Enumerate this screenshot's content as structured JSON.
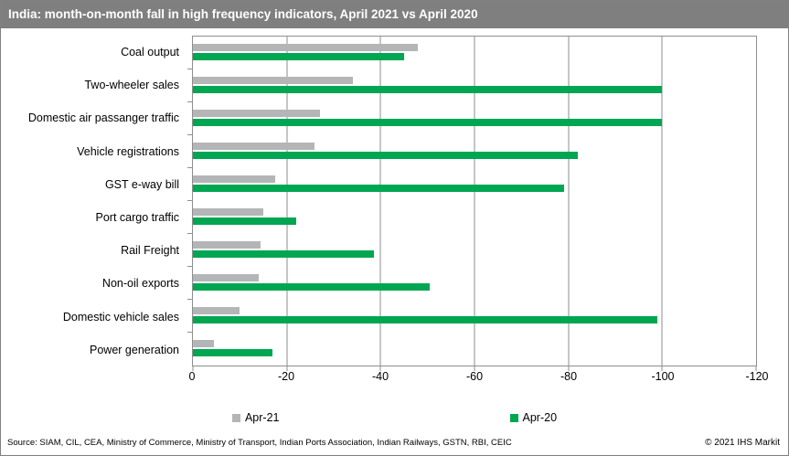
{
  "title": "India: month-on-month fall in high frequency indicators, April 2021 vs April 2020",
  "chart_data": {
    "type": "bar",
    "orientation": "horizontal",
    "title": "India: month-on-month fall in high frequency indicators, April 2021 vs April 2020",
    "categories": [
      "Coal output",
      "Two-wheeler sales",
      "Domestic air passanger traffic",
      "Vehicle registrations",
      "GST e-way bill",
      "Port cargo traffic",
      "Rail Freight",
      "Non-oil exports",
      "Domestic vehicle sales",
      "Power generation"
    ],
    "series": [
      {
        "name": "Apr-21",
        "color": "#b3b5b7",
        "values": [
          -48,
          -34,
          -27,
          -26,
          -17.5,
          -15,
          -14.5,
          -14,
          -10,
          -4.5
        ]
      },
      {
        "name": "Apr-20",
        "color": "#00a651",
        "values": [
          -45,
          -100,
          -100,
          -82,
          -79,
          -22,
          -38.5,
          -50.5,
          -99,
          -17
        ]
      }
    ],
    "xlabel": "",
    "ylabel": "",
    "xlim": [
      0,
      -120
    ],
    "x_ticks": [
      0,
      -20,
      -40,
      -60,
      -80,
      -100,
      -120
    ],
    "grid": "vertical",
    "legend_position": "bottom"
  },
  "colors": {
    "titlebar_bg": "#7f7f7f",
    "titlebar_text": "#ffffff",
    "apr21_gray": "#b3b5b7",
    "apr20_green": "#00a651",
    "axis_gray": "#8e8e8e"
  },
  "footer": {
    "source": "Source: SIAM, CIL, CEA, Ministry of Commerce, Ministry of Transport, Indian Ports Association, Indian Railways, GSTN, RBI, CEIC",
    "copyright": "© 2021  IHS Markit"
  }
}
